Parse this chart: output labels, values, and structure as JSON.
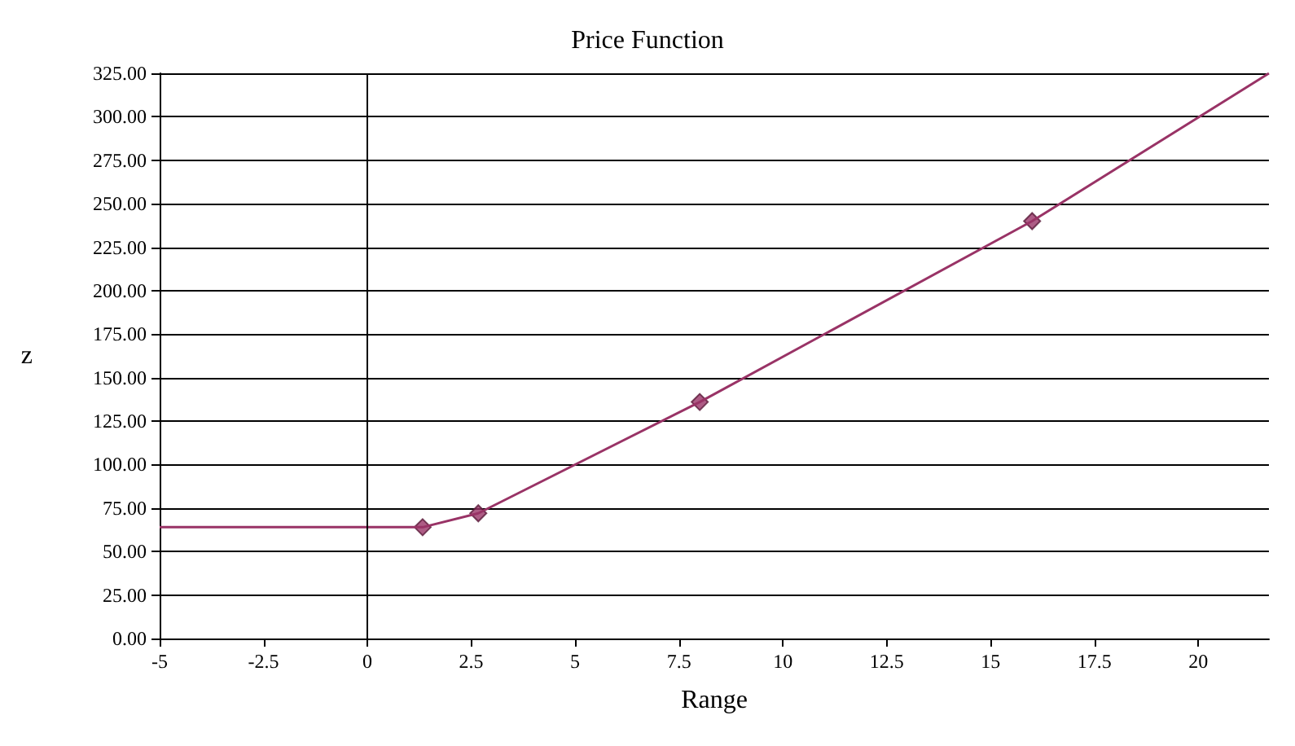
{
  "chart_data": {
    "type": "line",
    "title": "Price Function",
    "xlabel": "Range",
    "ylabel": "z",
    "series": [
      {
        "color": "#993366",
        "marker": "none",
        "x": [
          -5,
          1.33,
          2.67,
          8,
          16,
          21.7
        ],
        "values": [
          64,
          64,
          72,
          136,
          240,
          325
        ]
      },
      {
        "type": "scatter",
        "color": "#993366",
        "marker": "diamond",
        "x": [
          1.33,
          2.67,
          8,
          16
        ],
        "values": [
          64,
          72,
          136,
          240
        ]
      }
    ],
    "xlim": [
      -5,
      21.7
    ],
    "xticks": [
      -5,
      -2.5,
      0,
      2.5,
      5,
      7.5,
      10,
      12.5,
      15,
      17.5,
      20
    ],
    "ylim": [
      0,
      325
    ],
    "yticks": [
      {
        "value": 0,
        "label": "0.00"
      },
      {
        "value": 25,
        "label": "25.00"
      },
      {
        "value": 50,
        "label": "50.00"
      },
      {
        "value": 75,
        "label": "75.00"
      },
      {
        "value": 100,
        "label": "100.00"
      },
      {
        "value": 125,
        "label": "125.00"
      },
      {
        "value": 150,
        "label": "150.00"
      },
      {
        "value": 175,
        "label": "175.00"
      },
      {
        "value": 200,
        "label": "200.00"
      },
      {
        "value": 225,
        "label": "225.00"
      },
      {
        "value": 250,
        "label": "250.00"
      },
      {
        "value": 275,
        "label": "275.00"
      },
      {
        "value": 300,
        "label": "300.00"
      },
      {
        "value": 325,
        "label": "325.00"
      }
    ],
    "grid": "y",
    "ref_lines": [
      {
        "axis": "x",
        "value": 0,
        "color": "#000000"
      }
    ]
  }
}
